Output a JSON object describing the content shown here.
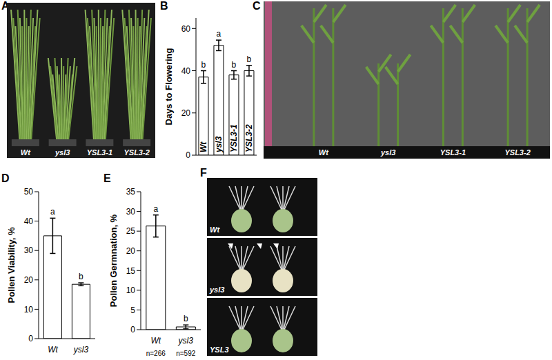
{
  "chart_data": [
    {
      "type": "bar",
      "title": "B",
      "ylabel": "Days to Flowering",
      "categories": [
        "Wt",
        "ysl3",
        "YSL3-1",
        "YSL3-2"
      ],
      "values": [
        37,
        52,
        38,
        40
      ],
      "errors": [
        3,
        2.5,
        2,
        2.5
      ],
      "annotations": [
        "b",
        "a",
        "b",
        "b"
      ],
      "ylim": [
        0,
        65
      ],
      "yticks": [
        0,
        20,
        40,
        60
      ],
      "color": "#ffffff",
      "tick_labels": "y"
    },
    {
      "type": "bar",
      "title": "D",
      "ylabel": "Pollen Viability, %",
      "categories": [
        "Wt",
        "ysl3"
      ],
      "values": [
        35,
        18.5
      ],
      "errors": [
        6,
        0.5
      ],
      "annotations": [
        "a",
        "b"
      ],
      "ylim": [
        0,
        50
      ],
      "yticks": [
        0,
        10,
        20,
        30,
        40,
        50
      ],
      "color": "#ffffff"
    },
    {
      "type": "bar",
      "title": "E",
      "ylabel": "Pollen Germnation, %",
      "categories": [
        "Wt",
        "ysl3"
      ],
      "values": [
        26.3,
        0.7
      ],
      "errors": [
        2.8,
        0.5
      ],
      "annotations": [
        "a",
        "b"
      ],
      "sample_labels": [
        "n=266",
        "n=592"
      ],
      "ylim": [
        0,
        35
      ],
      "yticks": [
        0,
        5,
        10,
        15,
        20,
        25,
        30,
        35
      ],
      "color": "#ffffff"
    }
  ],
  "images": [
    {
      "title": "A",
      "labels": [
        "Wt",
        "ysl3",
        "YSL3-1",
        "YSL3-2"
      ]
    },
    {
      "title": "C",
      "labels": [
        "Wt",
        "ysl3",
        "YSL3-1",
        "YSL3-2"
      ]
    },
    {
      "title": "F",
      "labels": [
        "Wt",
        "ysl3",
        "YSL3"
      ]
    }
  ]
}
